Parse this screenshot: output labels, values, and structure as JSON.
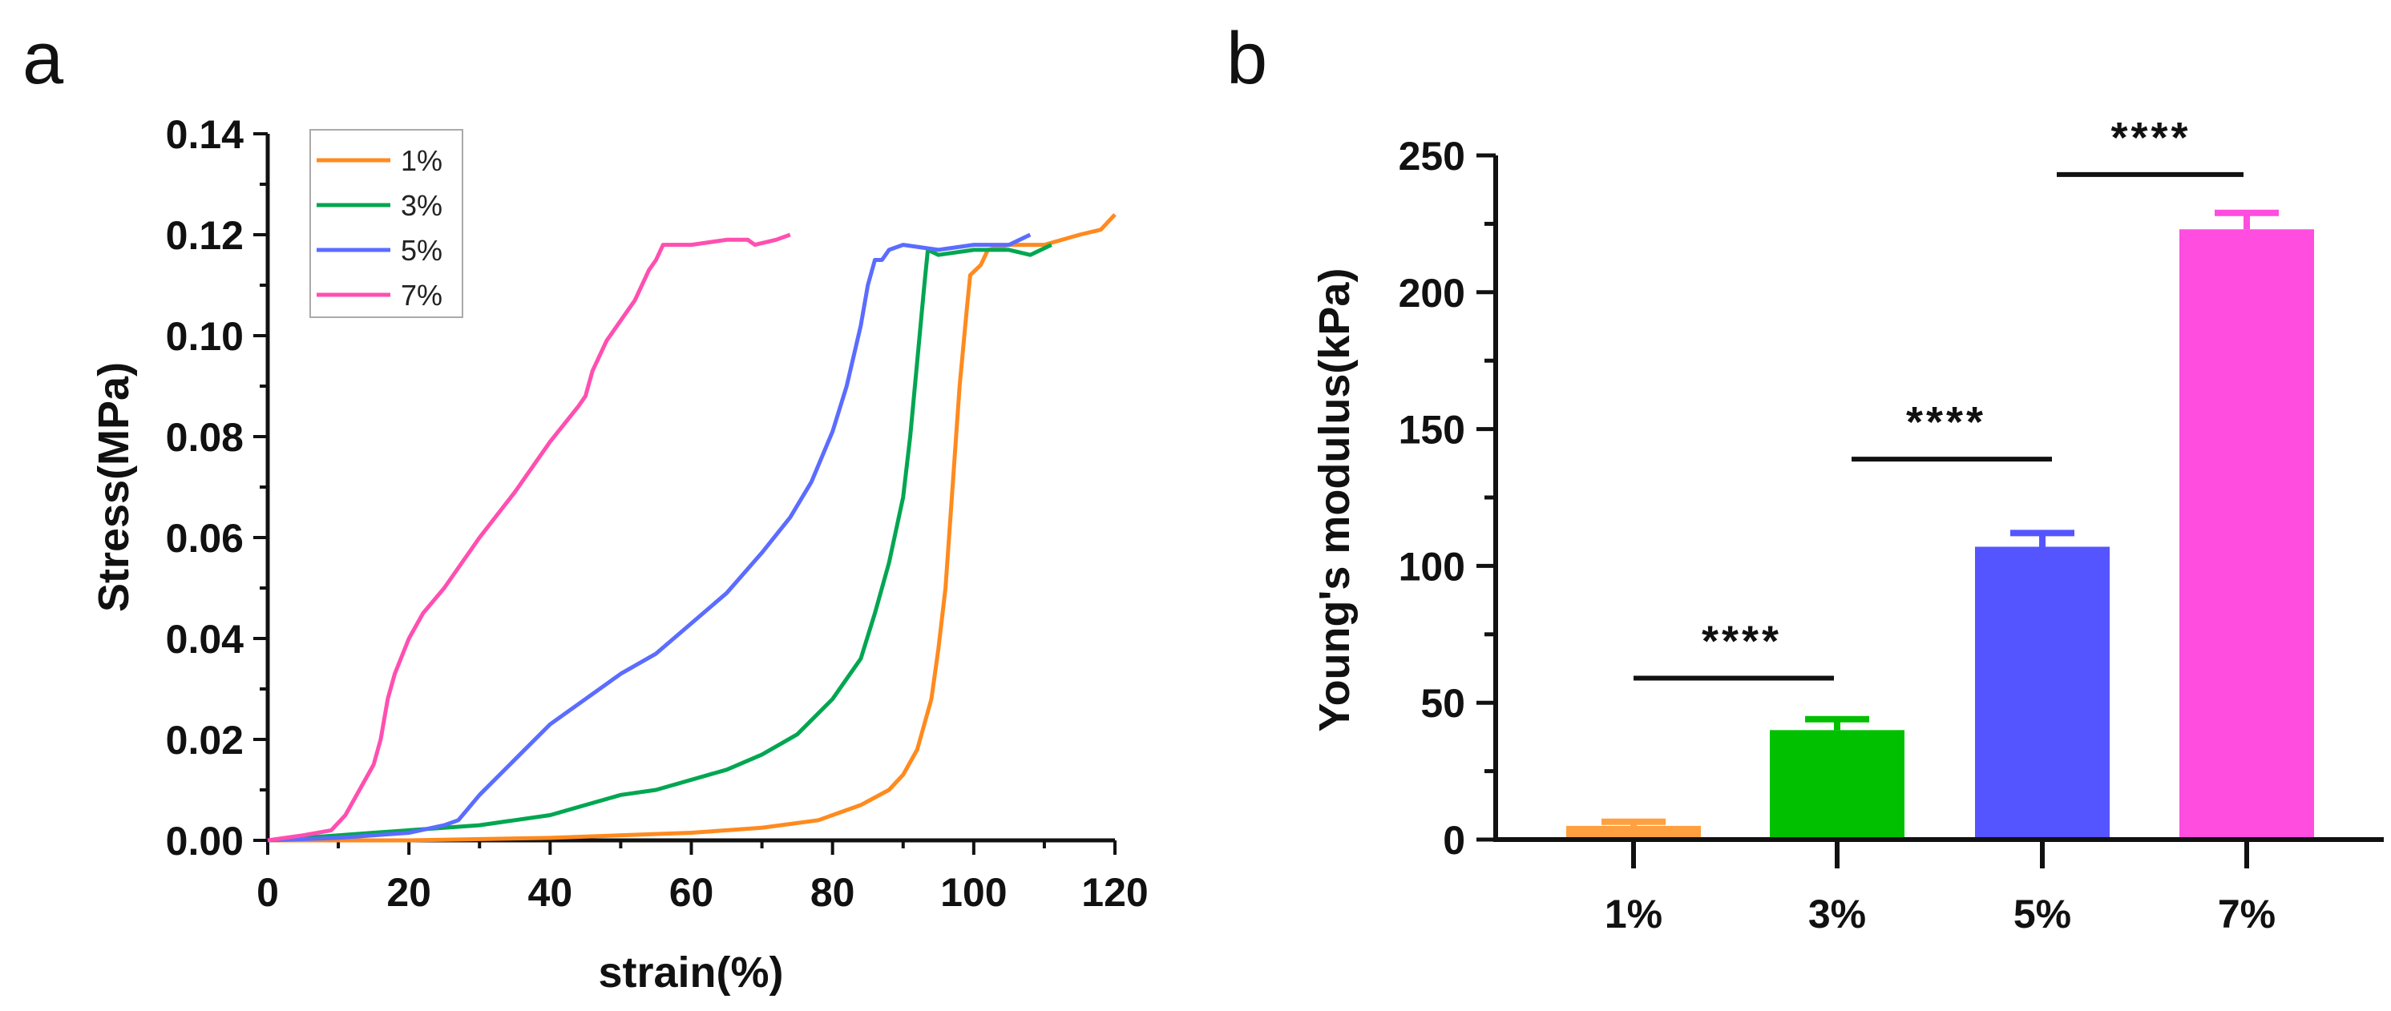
{
  "chart_data": [
    {
      "panel_label": "a",
      "type": "line",
      "xlabel": "strain(%)",
      "ylabel": "Stress(MPa)",
      "xlim": [
        0,
        120
      ],
      "ylim": [
        0,
        0.14
      ],
      "xticks": [
        "0",
        "20",
        "40",
        "60",
        "80",
        "100",
        "120"
      ],
      "yticks": [
        "0.00",
        "0.02",
        "0.04",
        "0.06",
        "0.08",
        "0.10",
        "0.12",
        "0.14"
      ],
      "legend_position": "top-left",
      "series": [
        {
          "name": "1%",
          "color": "#ff8a1e",
          "points": [
            [
              0,
              0
            ],
            [
              20,
              0
            ],
            [
              40,
              0.0005
            ],
            [
              60,
              0.0015
            ],
            [
              70,
              0.0025
            ],
            [
              78,
              0.004
            ],
            [
              84,
              0.007
            ],
            [
              88,
              0.01
            ],
            [
              90,
              0.013
            ],
            [
              92,
              0.018
            ],
            [
              94,
              0.028
            ],
            [
              95,
              0.038
            ],
            [
              96,
              0.05
            ],
            [
              97,
              0.07
            ],
            [
              98,
              0.09
            ],
            [
              99,
              0.105
            ],
            [
              99.5,
              0.112
            ],
            [
              101,
              0.114
            ],
            [
              102,
              0.117
            ],
            [
              105,
              0.118
            ],
            [
              110,
              0.118
            ],
            [
              115,
              0.12
            ],
            [
              118,
              0.121
            ],
            [
              120,
              0.124
            ]
          ]
        },
        {
          "name": "3%",
          "color": "#00a651",
          "points": [
            [
              0,
              0
            ],
            [
              10,
              0.001
            ],
            [
              15,
              0.0015
            ],
            [
              20,
              0.002
            ],
            [
              30,
              0.003
            ],
            [
              40,
              0.005
            ],
            [
              45,
              0.007
            ],
            [
              50,
              0.009
            ],
            [
              55,
              0.01
            ],
            [
              60,
              0.012
            ],
            [
              65,
              0.014
            ],
            [
              70,
              0.017
            ],
            [
              75,
              0.021
            ],
            [
              80,
              0.028
            ],
            [
              84,
              0.036
            ],
            [
              86,
              0.045
            ],
            [
              88,
              0.055
            ],
            [
              90,
              0.068
            ],
            [
              91,
              0.08
            ],
            [
              92,
              0.095
            ],
            [
              93,
              0.11
            ],
            [
              93.5,
              0.117
            ],
            [
              95,
              0.116
            ],
            [
              100,
              0.117
            ],
            [
              105,
              0.117
            ],
            [
              108,
              0.116
            ],
            [
              111,
              0.118
            ]
          ]
        },
        {
          "name": "5%",
          "color": "#5b6cff",
          "points": [
            [
              0,
              0
            ],
            [
              10,
              0.0005
            ],
            [
              20,
              0.0015
            ],
            [
              25,
              0.003
            ],
            [
              27,
              0.004
            ],
            [
              30,
              0.009
            ],
            [
              35,
              0.016
            ],
            [
              40,
              0.023
            ],
            [
              45,
              0.028
            ],
            [
              50,
              0.033
            ],
            [
              55,
              0.037
            ],
            [
              60,
              0.043
            ],
            [
              65,
              0.049
            ],
            [
              70,
              0.057
            ],
            [
              74,
              0.064
            ],
            [
              77,
              0.071
            ],
            [
              80,
              0.081
            ],
            [
              82,
              0.09
            ],
            [
              84,
              0.102
            ],
            [
              85,
              0.11
            ],
            [
              86,
              0.115
            ],
            [
              87,
              0.115
            ],
            [
              88,
              0.117
            ],
            [
              90,
              0.118
            ],
            [
              95,
              0.117
            ],
            [
              100,
              0.118
            ],
            [
              105,
              0.118
            ],
            [
              108,
              0.12
            ]
          ]
        },
        {
          "name": "7%",
          "color": "#ff4fb0",
          "points": [
            [
              0,
              0
            ],
            [
              5,
              0.001
            ],
            [
              9,
              0.002
            ],
            [
              11,
              0.005
            ],
            [
              13,
              0.01
            ],
            [
              15,
              0.015
            ],
            [
              16,
              0.02
            ],
            [
              17,
              0.028
            ],
            [
              18,
              0.033
            ],
            [
              20,
              0.04
            ],
            [
              22,
              0.045
            ],
            [
              25,
              0.05
            ],
            [
              30,
              0.06
            ],
            [
              35,
              0.069
            ],
            [
              40,
              0.079
            ],
            [
              44,
              0.086
            ],
            [
              45,
              0.088
            ],
            [
              46,
              0.093
            ],
            [
              48,
              0.099
            ],
            [
              50,
              0.103
            ],
            [
              52,
              0.107
            ],
            [
              54,
              0.113
            ],
            [
              55,
              0.115
            ],
            [
              56,
              0.118
            ],
            [
              60,
              0.118
            ],
            [
              65,
              0.119
            ],
            [
              68,
              0.119
            ],
            [
              69,
              0.118
            ],
            [
              72,
              0.119
            ],
            [
              74,
              0.12
            ]
          ]
        }
      ]
    },
    {
      "panel_label": "b",
      "type": "bar",
      "xlabel": "",
      "ylabel": "Young's modulus(kPa)",
      "ylim": [
        0,
        250
      ],
      "yticks": [
        "0",
        "50",
        "100",
        "150",
        "200",
        "250"
      ],
      "categories": [
        "1%",
        "3%",
        "5%",
        "7%"
      ],
      "values": [
        5,
        40,
        107,
        223
      ],
      "errors": [
        1.5,
        4,
        5,
        6
      ],
      "colors": [
        "#ffa040",
        "#00c000",
        "#5555ff",
        "#ff4de0"
      ],
      "significance": [
        {
          "from": 0,
          "to": 1,
          "label": "****",
          "level": 59
        },
        {
          "from": 1,
          "to": 2,
          "label": "****",
          "level": 139
        },
        {
          "from": 2,
          "to": 3,
          "label": "****",
          "level": 243
        }
      ]
    }
  ]
}
